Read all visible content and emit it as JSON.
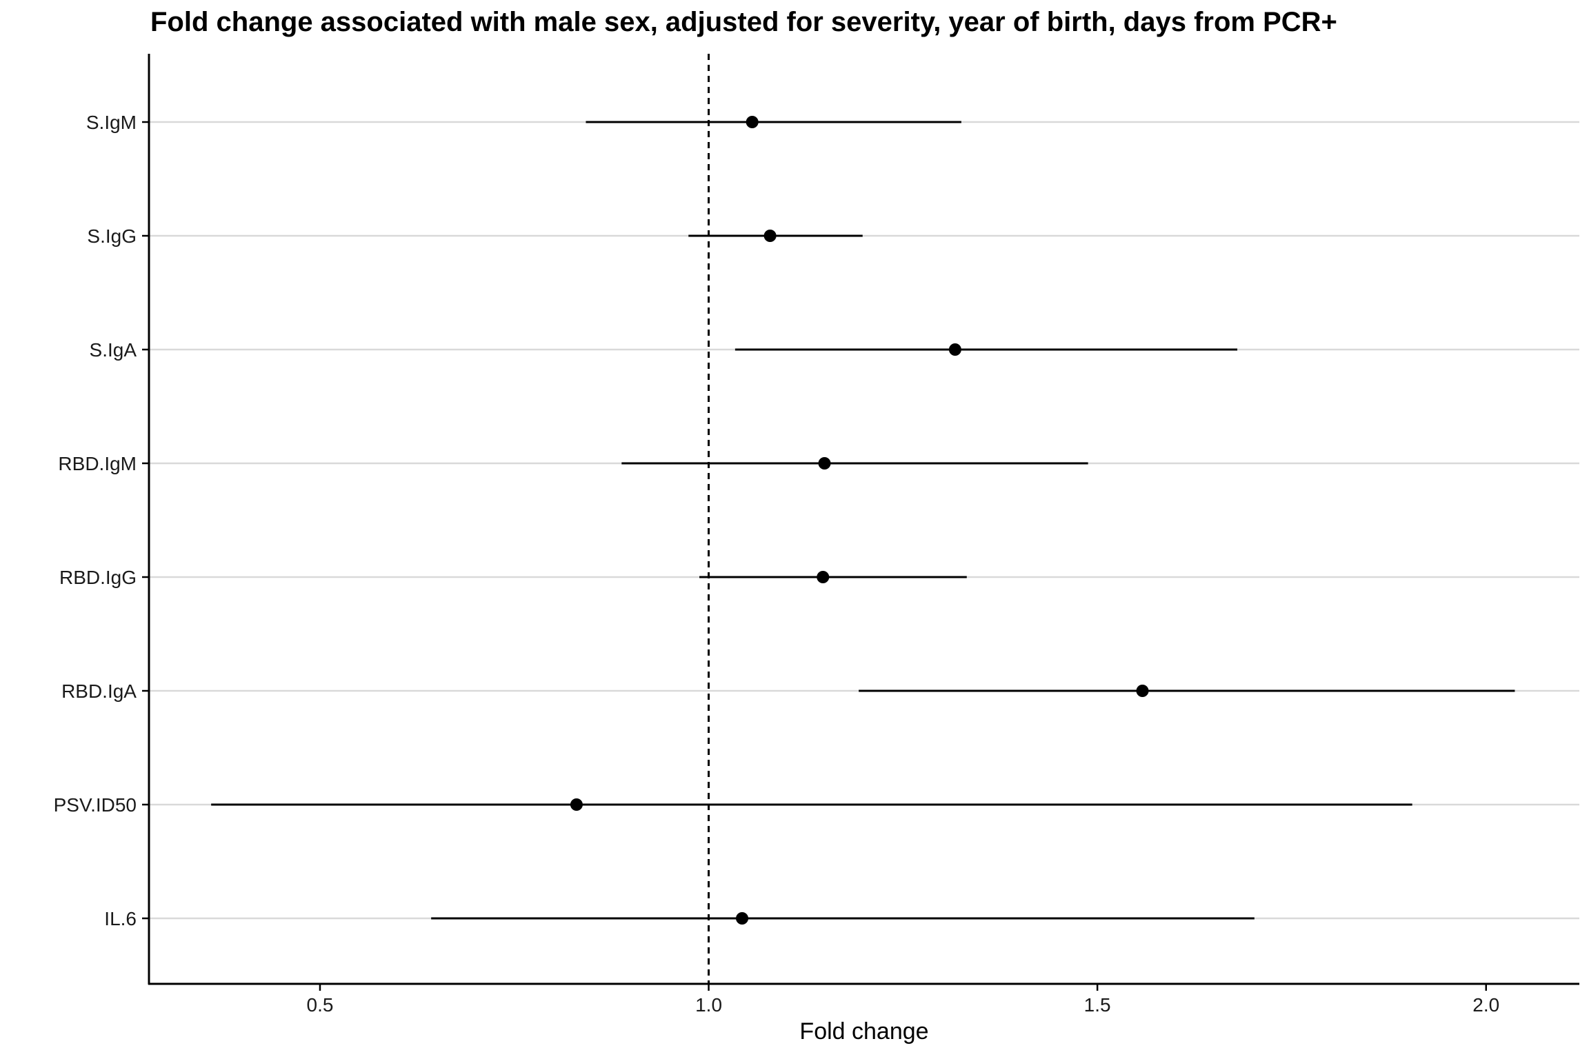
{
  "chart_data": {
    "type": "forest",
    "title": "Fold change associated with male sex, adjusted for severity, year of birth, days from PCR+",
    "xlabel": "Fold change",
    "ylabel": "",
    "xlim": [
      0.28,
      2.12
    ],
    "xticks": [
      "0.5",
      "1.0",
      "1.5",
      "2.0"
    ],
    "reference_line": 1.0,
    "grid": "horizontal",
    "categories": [
      "S.IgM",
      "S.IgG",
      "S.IgA",
      "RBD.IgM",
      "RBD.IgG",
      "RBD.IgA",
      "PSV.ID50",
      "IL.6"
    ],
    "estimates": [
      1.056,
      1.079,
      1.317,
      1.149,
      1.147,
      1.558,
      0.83,
      1.043
    ],
    "lower": [
      0.842,
      0.974,
      1.034,
      0.888,
      0.988,
      1.193,
      0.36,
      0.643
    ],
    "upper": [
      1.325,
      1.198,
      1.68,
      1.488,
      1.332,
      2.037,
      1.905,
      1.702
    ]
  },
  "colors": {
    "point": "#000000",
    "interval": "#000000",
    "gridline": "#d9d9d9",
    "axis": "#000000",
    "reference": "#000000"
  }
}
